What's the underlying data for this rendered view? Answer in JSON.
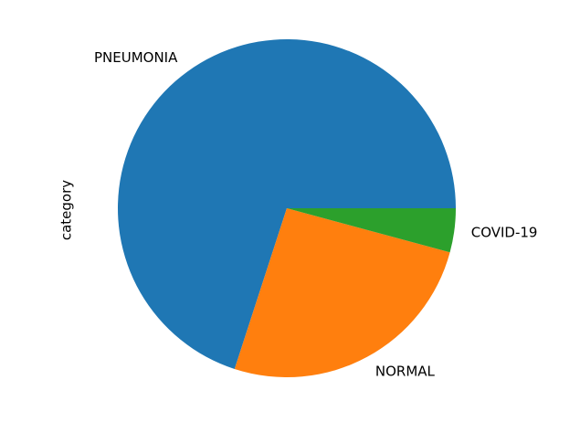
{
  "chart_data": {
    "type": "pie",
    "ylabel": "category",
    "categories": [
      "PNEUMONIA",
      "NORMAL",
      "COVID-19"
    ],
    "values": [
      70.0,
      25.8,
      4.2
    ],
    "colors": [
      "#1f77b4",
      "#ff7f0e",
      "#2ca02c"
    ],
    "start_angle_deg": 0,
    "direction": "counterclockwise"
  }
}
